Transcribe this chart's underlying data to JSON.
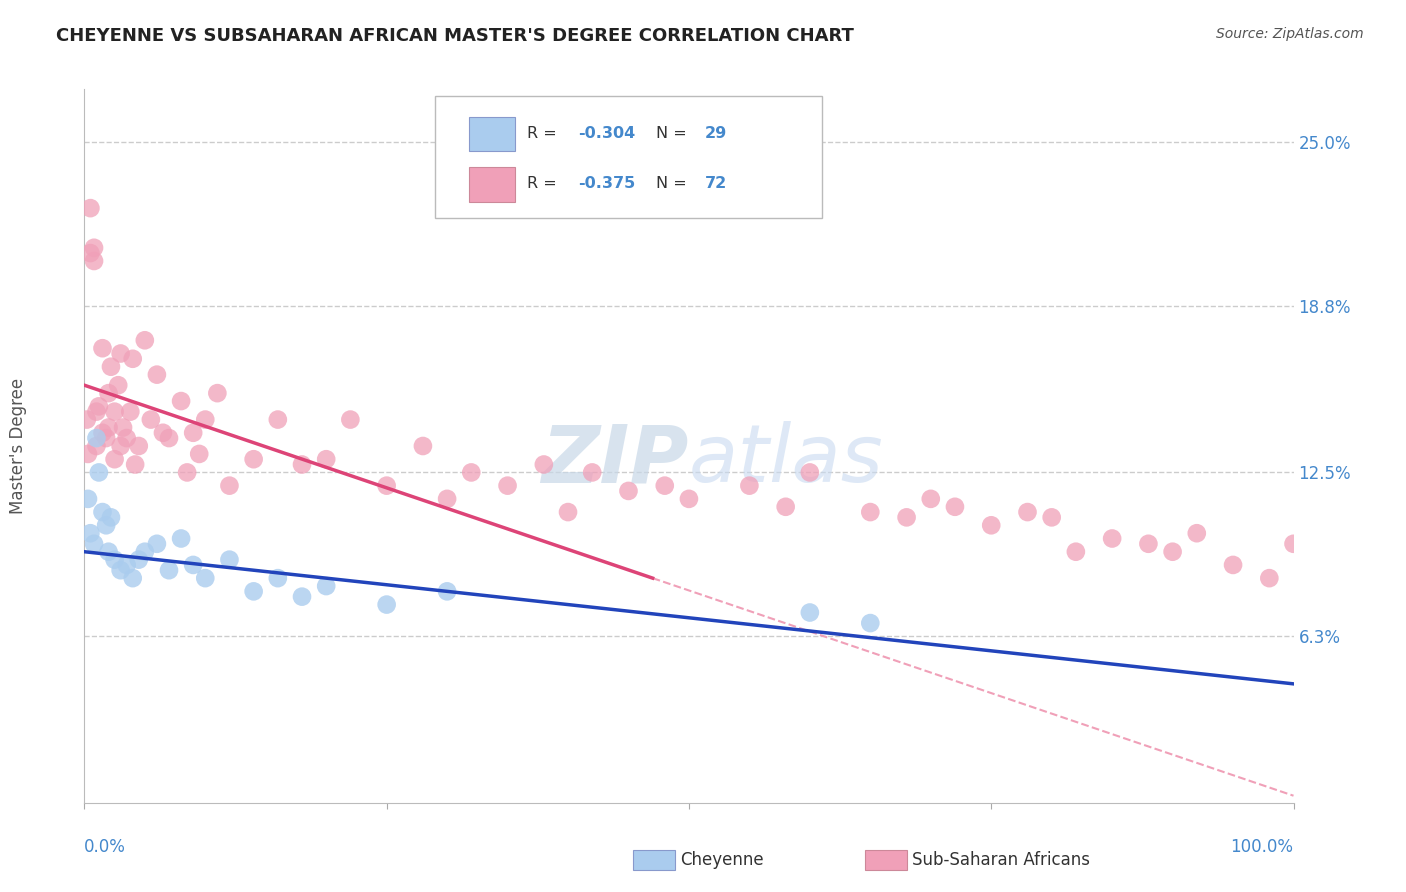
{
  "title": "CHEYENNE VS SUBSAHARAN AFRICAN MASTER'S DEGREE CORRELATION CHART",
  "source": "Source: ZipAtlas.com",
  "ylabel": "Master's Degree",
  "xmin": 0.0,
  "xmax": 100.0,
  "ymin": 0.0,
  "ymax": 27.0,
  "ytick_vals": [
    6.3,
    12.5,
    18.8,
    25.0
  ],
  "ytick_labels": [
    "6.3%",
    "12.5%",
    "18.8%",
    "25.0%"
  ],
  "grid_color": "#cccccc",
  "background_color": "#ffffff",
  "cheyenne_color": "#aaccee",
  "pink_color": "#f0a0b8",
  "blue_line_color": "#2244bb",
  "pink_line_color": "#dd4477",
  "pink_dash_color": "#f0a0b8",
  "watermark_text": "ZIPatlas",
  "watermark_color": "#d0dae8",
  "title_color": "#222222",
  "tick_label_color": "#4488cc",
  "legend_text_color": "#333333",
  "source_color": "#555555",
  "cheyenne_x": [
    0.3,
    0.5,
    0.8,
    1.0,
    1.2,
    1.5,
    1.8,
    2.0,
    2.2,
    2.5,
    3.0,
    3.5,
    4.0,
    4.5,
    5.0,
    6.0,
    7.0,
    8.0,
    9.0,
    10.0,
    12.0,
    14.0,
    16.0,
    18.0,
    20.0,
    25.0,
    30.0,
    60.0,
    65.0
  ],
  "cheyenne_y": [
    11.5,
    10.2,
    9.8,
    13.8,
    12.5,
    11.0,
    10.5,
    9.5,
    10.8,
    9.2,
    8.8,
    9.0,
    8.5,
    9.2,
    9.5,
    9.8,
    8.8,
    10.0,
    9.0,
    8.5,
    9.2,
    8.0,
    8.5,
    7.8,
    8.2,
    7.5,
    8.0,
    7.2,
    6.8
  ],
  "pink_x": [
    0.2,
    0.3,
    0.5,
    0.5,
    0.8,
    0.8,
    1.0,
    1.0,
    1.2,
    1.5,
    1.5,
    1.8,
    2.0,
    2.0,
    2.2,
    2.5,
    2.5,
    2.8,
    3.0,
    3.0,
    3.2,
    3.5,
    3.8,
    4.0,
    4.2,
    4.5,
    5.0,
    5.5,
    6.0,
    6.5,
    7.0,
    8.0,
    8.5,
    9.0,
    9.5,
    10.0,
    11.0,
    12.0,
    14.0,
    16.0,
    18.0,
    20.0,
    22.0,
    25.0,
    28.0,
    30.0,
    32.0,
    35.0,
    38.0,
    40.0,
    42.0,
    45.0,
    48.0,
    50.0,
    55.0,
    58.0,
    60.0,
    65.0,
    68.0,
    70.0,
    72.0,
    75.0,
    78.0,
    80.0,
    82.0,
    85.0,
    88.0,
    90.0,
    92.0,
    95.0,
    98.0,
    100.0
  ],
  "pink_y": [
    14.5,
    13.2,
    22.5,
    20.8,
    20.5,
    21.0,
    14.8,
    13.5,
    15.0,
    17.2,
    14.0,
    13.8,
    15.5,
    14.2,
    16.5,
    14.8,
    13.0,
    15.8,
    17.0,
    13.5,
    14.2,
    13.8,
    14.8,
    16.8,
    12.8,
    13.5,
    17.5,
    14.5,
    16.2,
    14.0,
    13.8,
    15.2,
    12.5,
    14.0,
    13.2,
    14.5,
    15.5,
    12.0,
    13.0,
    14.5,
    12.8,
    13.0,
    14.5,
    12.0,
    13.5,
    11.5,
    12.5,
    12.0,
    12.8,
    11.0,
    12.5,
    11.8,
    12.0,
    11.5,
    12.0,
    11.2,
    12.5,
    11.0,
    10.8,
    11.5,
    11.2,
    10.5,
    11.0,
    10.8,
    9.5,
    10.0,
    9.8,
    9.5,
    10.2,
    9.0,
    8.5,
    9.8
  ],
  "pink_line_x0": 0.0,
  "pink_line_x1": 47.0,
  "pink_line_y0": 15.8,
  "pink_line_y1": 8.5,
  "blue_line_x0": 0.0,
  "blue_line_x1": 100.0,
  "blue_line_y0": 9.5,
  "blue_line_y1": 4.5
}
